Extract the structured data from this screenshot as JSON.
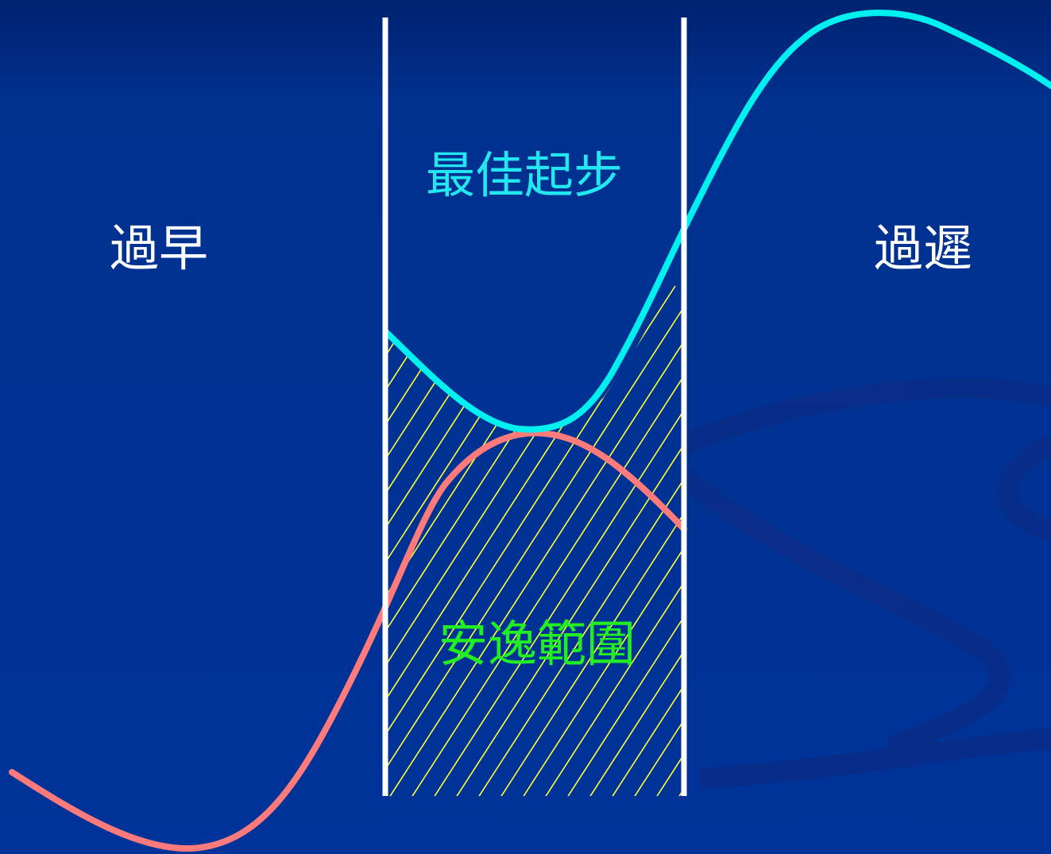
{
  "labels": {
    "too_early": "過早",
    "best_start": "最佳起步",
    "too_late": "過遲",
    "comfort_zone": "安逸範圍"
  },
  "colors": {
    "background": "#003399",
    "background_top": "#002270",
    "swirl": "#0a2e8a",
    "label_white": "#ffffff",
    "label_cyan": "#22e6f0",
    "label_green": "#22ee22",
    "cyan_curve": "#00f0f0",
    "red_curve": "#ff7a7a",
    "hatch": "#ffff33",
    "zone_lines": "#ffffff"
  }
}
